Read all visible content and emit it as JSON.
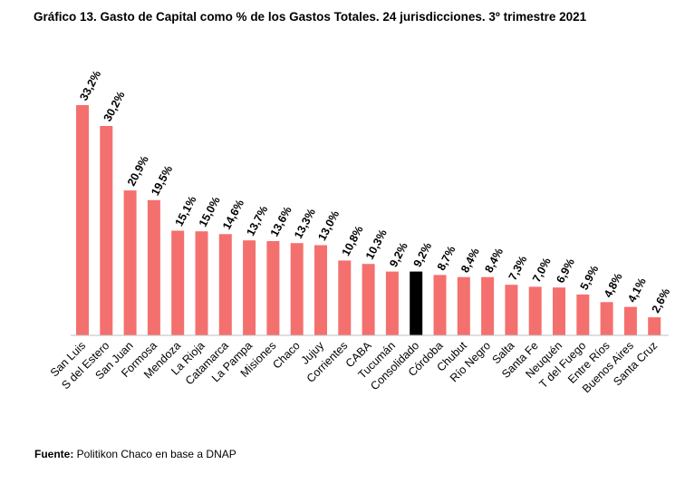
{
  "title": "Gráfico 13. Gasto de Capital como % de los Gastos Totales. 24 jurisdicciones. 3º trimestre 2021",
  "source": {
    "label": "Fuente:",
    "text": " Politikon Chaco en base a DNAP"
  },
  "colors": {
    "bar": "#F4706E",
    "highlight": "#000000",
    "axis": "#BFBFBF"
  },
  "chart_data": {
    "type": "bar",
    "title": "Gráfico 13. Gasto de Capital como % de los Gastos Totales. 24 jurisdicciones. 3º trimestre 2021",
    "xlabel": "",
    "ylabel": "",
    "ylim": [
      0,
      33.2
    ],
    "grid": false,
    "legend": "none",
    "categories": [
      "San Luis",
      "S del Estero",
      "San Juan",
      "Formosa",
      "Mendoza",
      "La Rioja",
      "Catamarca",
      "La Pampa",
      "Misiones",
      "Chaco",
      "Jujuy",
      "Corrientes",
      "CABA",
      "Tucumán",
      "Consolidado",
      "Córdoba",
      "Chubut",
      "Río Negro",
      "Salta",
      "Santa Fe",
      "Neuquén",
      "T del Fuego",
      "Entre Ríos",
      "Buenos Aires",
      "Santa Cruz"
    ],
    "values": [
      33.2,
      30.2,
      20.9,
      19.5,
      15.1,
      15.0,
      14.6,
      13.7,
      13.6,
      13.3,
      13.0,
      10.8,
      10.3,
      9.2,
      9.2,
      8.7,
      8.4,
      8.4,
      7.3,
      7.0,
      6.9,
      5.9,
      4.8,
      4.1,
      2.6
    ],
    "data_labels": [
      "33,2%",
      "30,2%",
      "20,9%",
      "19,5%",
      "15,1%",
      "15,0%",
      "14,6%",
      "13,7%",
      "13,6%",
      "13,3%",
      "13,0%",
      "10,8%",
      "10,3%",
      "9,2%",
      "9,2%",
      "8,7%",
      "8,4%",
      "8,4%",
      "7,3%",
      "7,0%",
      "6,9%",
      "5,9%",
      "4,8%",
      "4,1%",
      "2,6%"
    ],
    "highlight_category": "Consolidado"
  }
}
